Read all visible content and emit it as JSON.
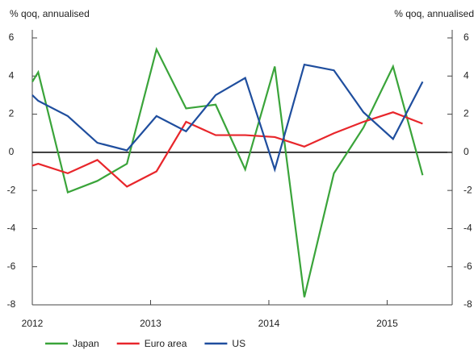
{
  "chart_data": {
    "type": "line",
    "y_label": "% qoq, annualised",
    "y2_label": "% qoq, annualised",
    "x": [
      2012.0,
      2012.05,
      2012.3,
      2012.55,
      2012.8,
      2013.05,
      2013.3,
      2013.55,
      2013.8,
      2014.05,
      2014.3,
      2014.55,
      2014.8,
      2015.05,
      2015.3
    ],
    "xlim": [
      2012,
      2015.55
    ],
    "xticks": [
      2012,
      2013,
      2014,
      2015
    ],
    "ylim": [
      -8,
      6
    ],
    "yticks": [
      -8,
      -6,
      -4,
      -2,
      0,
      2,
      4,
      6
    ],
    "y2lim": [
      -8,
      6
    ],
    "y2ticks": [
      -8,
      -6,
      -4,
      -2,
      0,
      2,
      4,
      6
    ],
    "series": [
      {
        "name": "Japan",
        "color": "#3aa43a",
        "values": [
          3.7,
          4.2,
          -2.1,
          -1.5,
          -0.6,
          5.4,
          2.3,
          2.5,
          -0.9,
          4.5,
          -7.6,
          -1.1,
          1.3,
          4.5,
          -1.2
        ]
      },
      {
        "name": "Euro area",
        "color": "#e8262b",
        "values": [
          -0.7,
          -0.6,
          -1.1,
          -0.4,
          -1.8,
          -1.0,
          1.6,
          0.9,
          0.9,
          0.8,
          0.3,
          1.0,
          1.6,
          2.1,
          1.5
        ]
      },
      {
        "name": "US",
        "color": "#1f4e9e",
        "values": [
          3.0,
          2.7,
          1.9,
          0.5,
          0.1,
          1.9,
          1.1,
          3.0,
          3.9,
          -0.9,
          4.6,
          4.3,
          2.1,
          0.7,
          3.7
        ]
      }
    ]
  }
}
